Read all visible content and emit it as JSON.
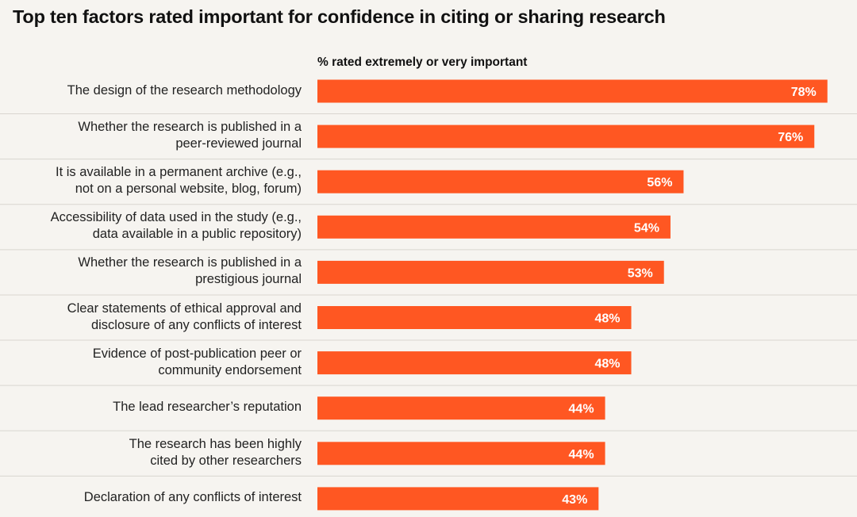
{
  "chart_data": {
    "type": "bar",
    "orientation": "horizontal",
    "title": "Top ten factors rated important for confidence in citing or sharing research",
    "xlabel": "% rated extremely or very important",
    "ylabel": "",
    "xlim": [
      0,
      100
    ],
    "grid": false,
    "bar_color": "#ff5722",
    "categories": [
      [
        "The design of the research methodology"
      ],
      [
        "Whether the research is published in a",
        "peer-reviewed journal"
      ],
      [
        "It is available in a permanent archive (e.g.,",
        "not on a personal website, blog, forum)"
      ],
      [
        "Accessibility of data used in the study (e.g.,",
        "data available in a public repository)"
      ],
      [
        "Whether the research is published in a",
        "prestigious journal"
      ],
      [
        "Clear statements of ethical approval and",
        "disclosure of any conflicts of interest"
      ],
      [
        "Evidence of post-publication peer or",
        "community endorsement"
      ],
      [
        "The lead researcher’s reputation"
      ],
      [
        "The research has been highly",
        "cited by other researchers"
      ],
      [
        "Declaration of any conflicts of interest"
      ]
    ],
    "values": [
      78,
      76,
      56,
      54,
      53,
      48,
      48,
      44,
      44,
      43
    ],
    "value_labels": [
      "78%",
      "76%",
      "56%",
      "54%",
      "53%",
      "48%",
      "48%",
      "44%",
      "44%",
      "43%"
    ]
  }
}
